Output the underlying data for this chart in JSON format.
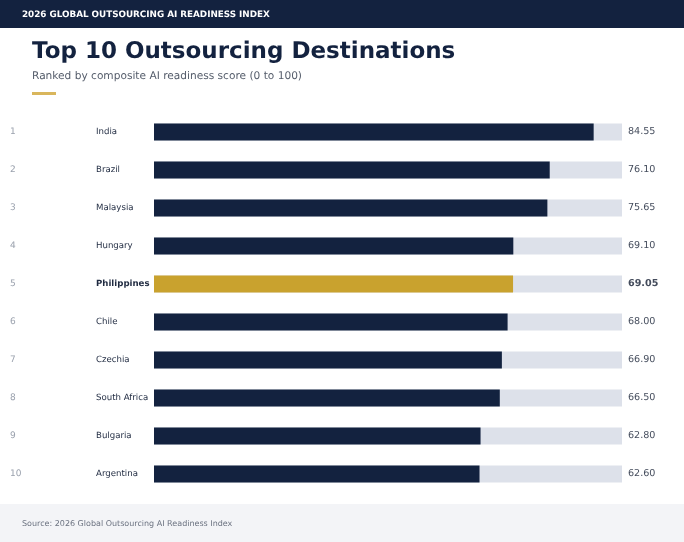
{
  "chart_data": {
    "type": "bar",
    "orientation": "horizontal",
    "title": "Top 10 Outsourcing Destinations",
    "subtitle": "Ranked by composite AI readiness score (0 to 100)",
    "categories": [
      "India",
      "Brazil",
      "Malaysia",
      "Hungary",
      "Philippines",
      "Chile",
      "Czechia",
      "South Africa",
      "Bulgaria",
      "Argentina"
    ],
    "values": [
      84.55,
      76.1,
      75.65,
      69.1,
      69.05,
      68.0,
      66.9,
      66.5,
      62.8,
      62.6
    ],
    "value_labels": [
      "84.55",
      "76.10",
      "75.65",
      "69.10",
      "69.05",
      "68.00",
      "66.90",
      "66.50",
      "62.80",
      "62.60"
    ],
    "colors": [
      "#13223f",
      "#13223f",
      "#13223f",
      "#13223f",
      "#c9a22e",
      "#13223f",
      "#13223f",
      "#13223f",
      "#13223f",
      "#13223f"
    ],
    "xlim": [
      0,
      90
    ],
    "bands": [
      {
        "axis": "x",
        "from": 0,
        "to": 90,
        "color": "#dde1ea"
      }
    ],
    "annotations": [
      "1",
      "2",
      "3",
      "4",
      "5",
      "6",
      "7",
      "8",
      "9",
      "10",
      "2026 GLOBAL OUTSOURCING AI READINESS INDEX",
      "Source: 2026 Global Outsourcing AI Readiness Index"
    ]
  }
}
